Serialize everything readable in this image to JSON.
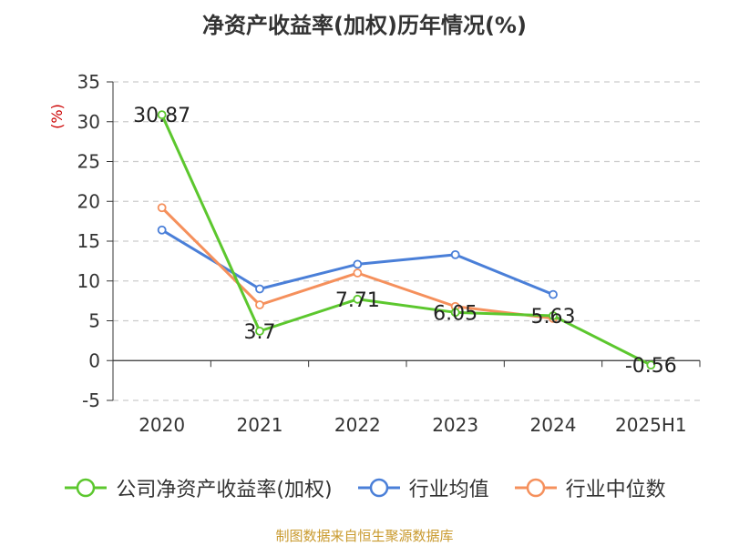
{
  "chart_data": {
    "type": "line",
    "title": "净资产收益率(加权)历年情况(%)",
    "ylabel": "(%)",
    "xlabel": "",
    "categories": [
      "2020",
      "2021",
      "2022",
      "2023",
      "2024",
      "2025H1"
    ],
    "ylim": [
      -5,
      35
    ],
    "yticks": [
      "-5",
      "0",
      "5",
      "10",
      "15",
      "20",
      "25",
      "30",
      "35"
    ],
    "grid": "horizontal dashed",
    "legend_position": "bottom",
    "series": [
      {
        "name": "公司净资产收益率(加权)",
        "color": "#5cc72e",
        "values": [
          30.87,
          3.7,
          7.71,
          6.05,
          5.63,
          -0.56
        ],
        "labels": [
          "30.87",
          "3.7",
          "7.71",
          "6.05",
          "5.63",
          "-0.56"
        ]
      },
      {
        "name": "行业均值",
        "color": "#4a7fd8",
        "values": [
          16.4,
          9.0,
          12.1,
          13.3,
          8.3,
          null
        ]
      },
      {
        "name": "行业中位数",
        "color": "#f5905c",
        "values": [
          19.2,
          7.0,
          11.0,
          6.8,
          5.3,
          null
        ]
      }
    ]
  },
  "source": "制图数据来自恒生聚源数据库"
}
